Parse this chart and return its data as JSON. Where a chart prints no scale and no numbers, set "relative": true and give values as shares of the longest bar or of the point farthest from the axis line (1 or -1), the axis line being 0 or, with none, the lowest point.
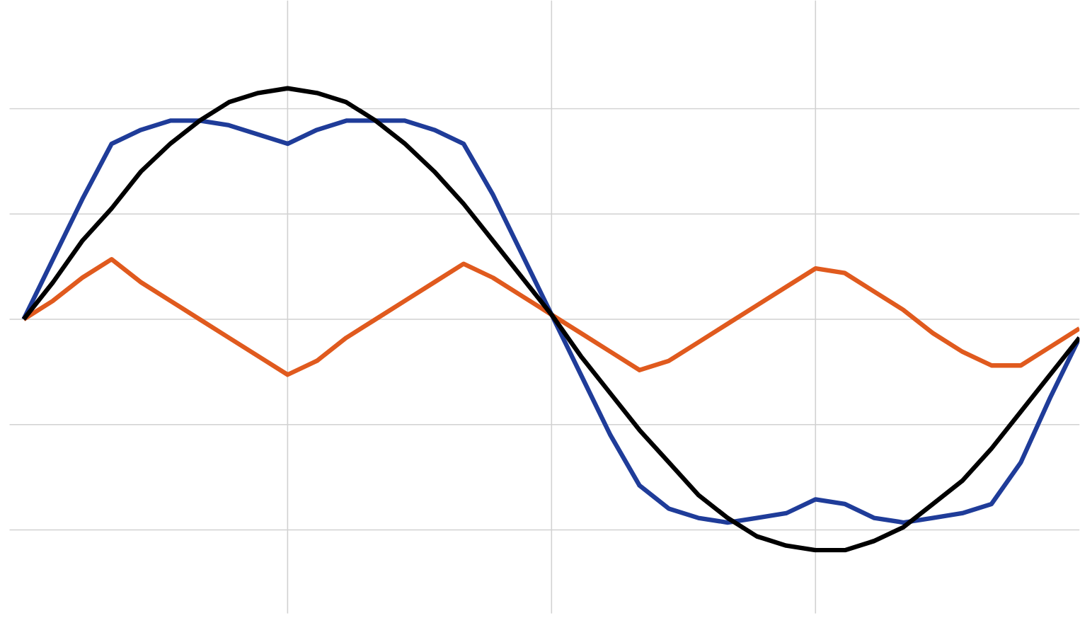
{
  "chart_data": {
    "type": "line",
    "relative": true,
    "grid": true,
    "categories": [
      null,
      null,
      null,
      null,
      null,
      null,
      null,
      null,
      null,
      null,
      null,
      null,
      null,
      null,
      null,
      null,
      null,
      null,
      null,
      null,
      null,
      null,
      null,
      null,
      null,
      null,
      null,
      null,
      null,
      null,
      null,
      null,
      null,
      null,
      null,
      null,
      null
    ],
    "series": [
      {
        "color": "#e05a1e",
        "values": [
          0.5,
          0.54,
          0.59,
          0.63,
          0.58,
          0.54,
          0.5,
          0.46,
          0.42,
          0.38,
          0.41,
          0.46,
          0.5,
          0.54,
          0.58,
          0.62,
          0.59,
          0.55,
          0.51,
          0.47,
          0.43,
          0.39,
          0.41,
          0.45,
          0.49,
          0.53,
          0.57,
          0.61,
          0.6,
          0.56,
          0.52,
          0.47,
          0.43,
          0.4,
          0.4,
          0.44,
          0.48
        ]
      },
      {
        "color": "#1f3c99",
        "values": [
          0.5,
          0.63,
          0.76,
          0.88,
          0.91,
          0.93,
          0.93,
          0.92,
          0.9,
          0.88,
          0.91,
          0.93,
          0.93,
          0.93,
          0.91,
          0.88,
          0.77,
          0.64,
          0.51,
          0.38,
          0.25,
          0.14,
          0.09,
          0.07,
          0.06,
          0.07,
          0.08,
          0.11,
          0.1,
          0.07,
          0.06,
          0.07,
          0.08,
          0.1,
          0.19,
          0.33,
          0.46
        ]
      },
      {
        "color": "#000000",
        "values": [
          0.5,
          0.58,
          0.67,
          0.74,
          0.82,
          0.88,
          0.93,
          0.97,
          0.99,
          1.0,
          0.99,
          0.97,
          0.93,
          0.88,
          0.82,
          0.75,
          0.67,
          0.59,
          0.51,
          0.42,
          0.34,
          0.26,
          0.19,
          0.12,
          0.07,
          0.03,
          0.01,
          0.0,
          0.0,
          0.02,
          0.05,
          0.1,
          0.15,
          0.22,
          0.3,
          0.38,
          0.46
        ]
      }
    ]
  }
}
